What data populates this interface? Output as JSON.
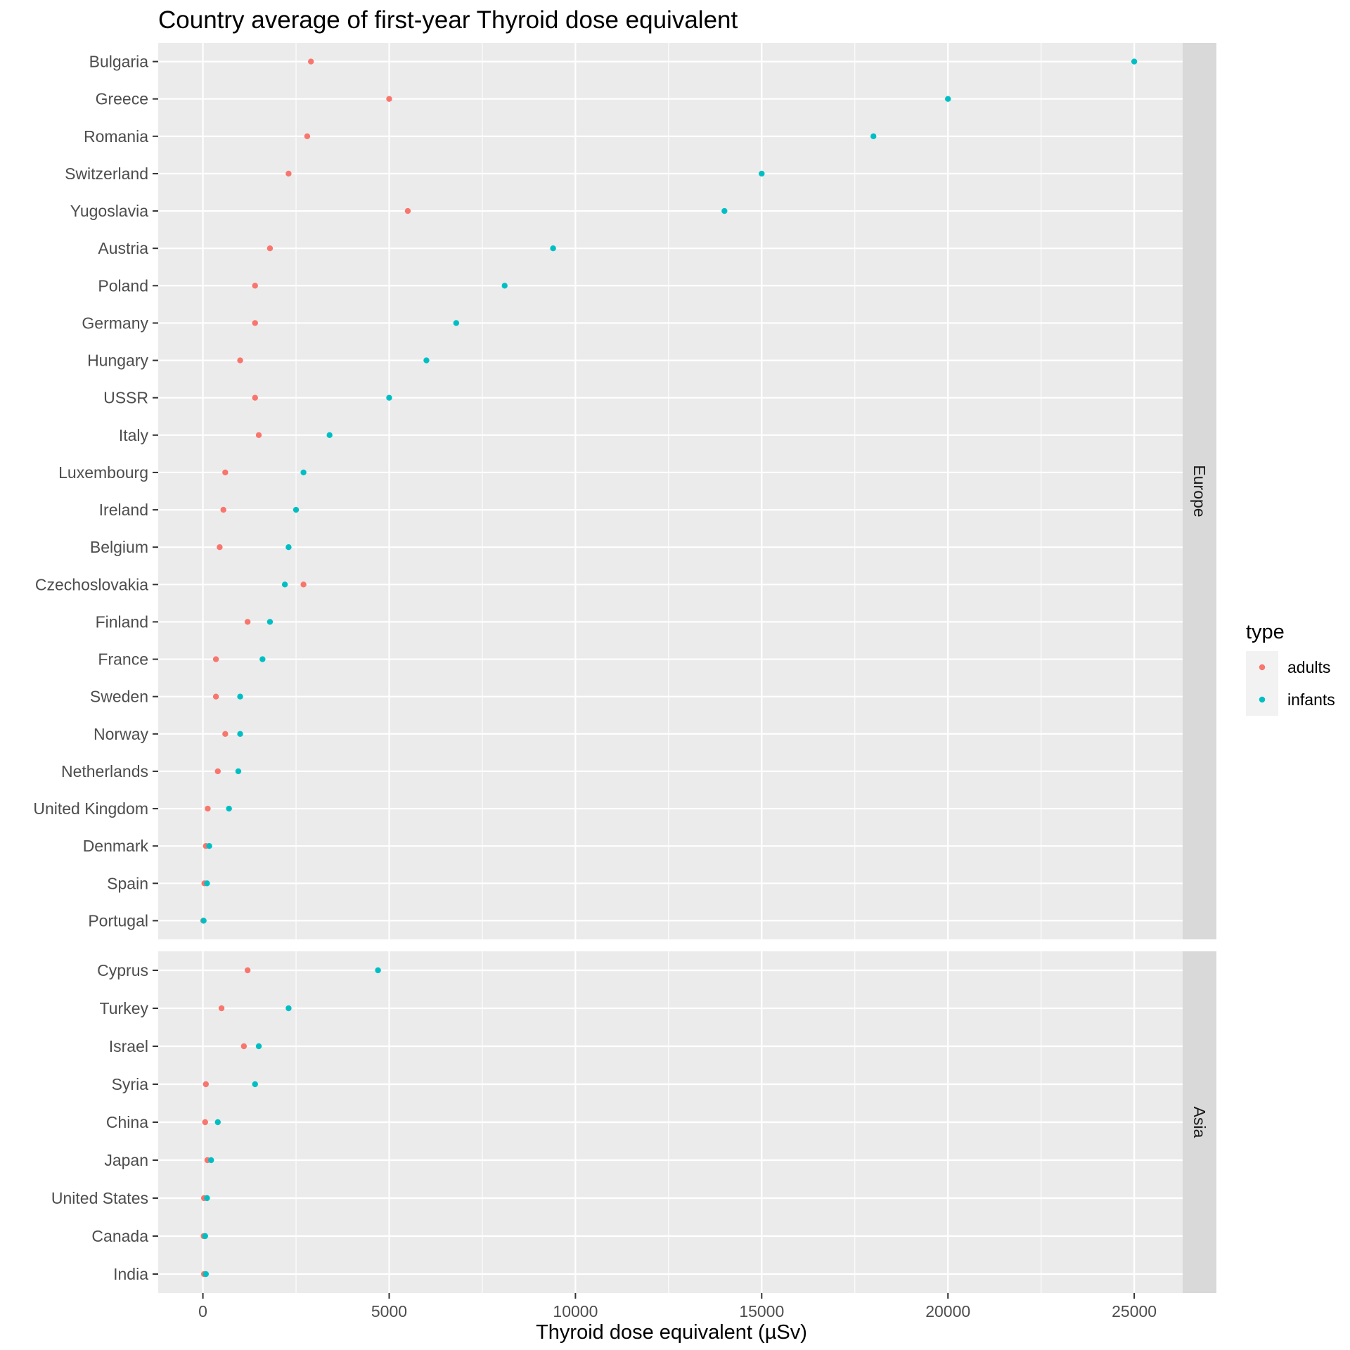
{
  "chart_data": {
    "type": "scatter",
    "title": "Country average of first-year Thyroid dose equivalent",
    "xlabel": "Thyroid dose equivalent (µSv)",
    "ylabel": "",
    "xlim": [
      -1200,
      26300
    ],
    "x_ticks": [
      0,
      5000,
      10000,
      15000,
      20000,
      25000
    ],
    "x_tick_labels": [
      "0",
      "5000",
      "10000",
      "15000",
      "20000",
      "25000"
    ],
    "grid": true,
    "legend": {
      "title": "type",
      "placement": "right",
      "entries": [
        "adults",
        "infants"
      ]
    },
    "series_colors": {
      "adults": "#F8766D",
      "infants": "#00BFC4"
    },
    "panels": [
      {
        "strip": "Europe",
        "categories": [
          "Bulgaria",
          "Greece",
          "Romania",
          "Switzerland",
          "Yugoslavia",
          "Austria",
          "Poland",
          "Germany",
          "Hungary",
          "USSR",
          "Italy",
          "Luxembourg",
          "Ireland",
          "Belgium",
          "Czechoslovakia",
          "Finland",
          "France",
          "Sweden",
          "Norway",
          "Netherlands",
          "United Kingdom",
          "Denmark",
          "Spain",
          "Portugal"
        ],
        "series": [
          {
            "name": "adults",
            "values": [
              2900,
              5000,
              2800,
              2300,
              5500,
              1800,
              1400,
              1400,
              1000,
              1400,
              1500,
              600,
              550,
              450,
              2700,
              1200,
              350,
              350,
              600,
              400,
              130,
              80,
              40,
              10
            ]
          },
          {
            "name": "infants",
            "values": [
              25000,
              20000,
              18000,
              15000,
              14000,
              9400,
              8100,
              6800,
              6000,
              5000,
              3400,
              2700,
              2500,
              2300,
              2200,
              1800,
              1600,
              1000,
              1000,
              950,
              700,
              170,
              110,
              20
            ]
          }
        ]
      },
      {
        "strip": "Asia",
        "categories": [
          "Cyprus",
          "Turkey",
          "Israel",
          "Syria",
          "China",
          "Japan",
          "United States",
          "Canada",
          "India"
        ],
        "series": [
          {
            "name": "adults",
            "values": [
              1200,
              500,
              1100,
              80,
              60,
              120,
              30,
              20,
              30
            ]
          },
          {
            "name": "infants",
            "values": [
              4700,
              2300,
              1500,
              1400,
              400,
              220,
              110,
              60,
              80
            ]
          }
        ]
      }
    ]
  },
  "colors": {
    "panel_background": "#EBEBEB",
    "grid_line": "#FFFFFF",
    "strip_background": "#D9D9D9",
    "tick_mark": "#333333",
    "tick_text": "#4D4D4D",
    "legend_key_background": "#F2F2F2"
  }
}
